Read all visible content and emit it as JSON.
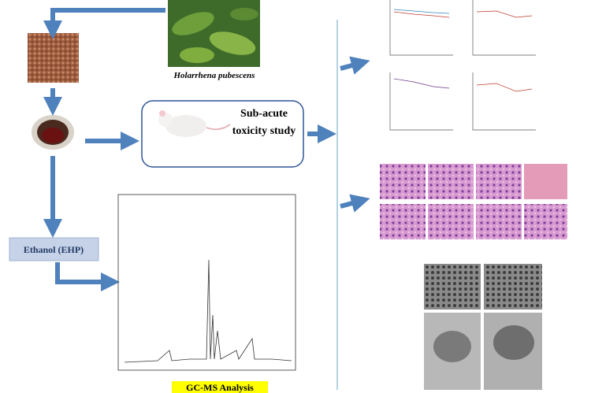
{
  "plant": {
    "label": "Holarrhena pubescens"
  },
  "study": {
    "label": "Sub-acute toxicity study"
  },
  "extract": {
    "label": "Ethanol (EHP)"
  },
  "analysis": {
    "label": "GC-MS Analysis"
  }
}
